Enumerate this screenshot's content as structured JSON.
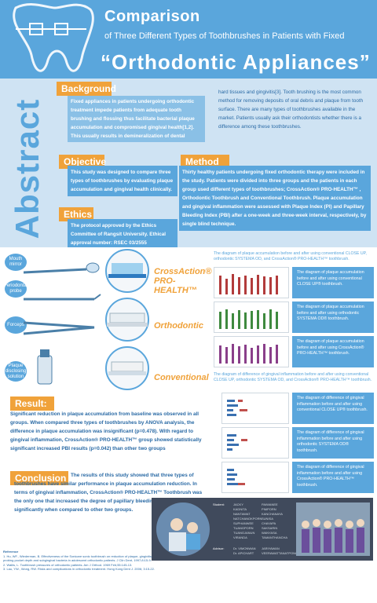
{
  "header": {
    "title_line1": "Comparison",
    "title_line2": "of Three Different Types of Toothbrushes in Patients with Fixed",
    "title_line3": "“Orthodontic Appliances”"
  },
  "abstract": {
    "word": "Abstract",
    "background": {
      "heading": "Background",
      "col1": "Fixed appliances in patients undergoing orthodontic treatment impede patients from adequate tooth brushing and flossing thus facilitate bacterial plaque accumulation and compromised gingival health[1,2]. This usually results in demineralization of dental",
      "col2": "hard tissues and gingivitis[3]. Tooth brushing is the most common method for removing deposits of oral debris and plaque from tooth surface. There are many types of toothbrushes available in the market. Patients usually ask their orthodontists whether there is a difference among these toothbrushes."
    },
    "objective": {
      "heading": "Objective",
      "text": "This study was designed to compare three types of toothbrushes by evaluating plaque accumulation and gingival health clinically."
    },
    "ethics": {
      "heading": "Ethics",
      "text": "The protocol approved by the Ethics Committee of Rangsit University. Ethical approval number: RSEC 03/2555"
    },
    "method": {
      "heading": "Method",
      "text": "Thirty healthy patients undergoing fixed orthodontic therapy were included in the study. Patients were divided into three groups and the patients in each group used different types of toothbrushes; CrossAction® PRO-HEALTH™ , Orthodontic Toothbrush and Conventional Toothbrush. Plaque accumulation and gingival inflammation were assessed with Plaque Index (PI) and Papillary Bleeding Index (PBI) after a one-week and three-week interval, respectively, by single blind technique."
    }
  },
  "tools": {
    "labels": [
      "Mouth mirror",
      "Periodontal probe",
      "Forceps",
      "Plaque disclosing solution"
    ],
    "brushes": [
      "CrossAction® PRO-HEALTH™",
      "Orthodontic",
      "Conventional"
    ]
  },
  "charts_right": {
    "caption_top": "The diagram of plaque accumulation before and after using conventional CLOSE UP, orthodontic SYSTEMA OD, and CrossAction® PRO-HEALTH™ toothbrush.",
    "plaque_info": [
      "The diagram of plaque accumulation before and after using conventional CLOSE UP® toothbrush.",
      "The diagram of plaque accumulation before and after using orthodontic SYSTEMA OD® toothbrush.",
      "The diagram of plaque accumulation before and after using CrossAction® PRO-HEALTH™ toothbrush."
    ],
    "caption_mid": "The diagram of difference of gingival inflammation before and after using conventional CLOSE UP, orthodontic SYSTEMA OD, and CrossAction® PRO-HEALTH™ toothbrush.",
    "gingival_info": [
      "The diagram of difference of gingival inflammation before and after using conventional CLOSE UP® toothbrush.",
      "The diagram of difference of gingival inflammation before and after using orthodontic SYSTEMA OD® toothbrush.",
      "The diagram of difference of gingival inflammation before and after using CrossAction® PRO-HEALTH™ toothbrush."
    ]
  },
  "result": {
    "heading": "Result:",
    "text": "Significant reduction in plaque accumulation from baseline was observed in all groups. When compared three types of toothbrushes by ANOVA analysis, the difference in plaque accumulation was insignificant (p=0.478). With regard to gingival inflammation, CrossAction® PRO-HEALTH™ group showed statistically significant increased PBI results (p=0.042) than other two groups"
  },
  "conclusion": {
    "heading": "Conclusion",
    "text": "The results of this study showed that three types of toothbrushes have similar performance in plaque accumulation reduction. In terms of gingival inflammation, CrossAction® PRO-HEALTH™ Toothbrush was the only one that increased the degree of papillary bleeding index statistical significantly when compared to other two groups."
  },
  "team": {
    "student_label": "Student:",
    "students": [
      "JACKY",
      "KADNITA",
      "NANTAWAT",
      "NATCHANOKPORN",
      "SUPHANWEE",
      "TUANGPORN",
      "TUANGJANUN",
      "VIRANDA",
      "PAIWANEE",
      "PIMPORN",
      "KANCHANAYA",
      "SUNISA",
      "CHAYAPA",
      "SAKSARIN",
      "WANYASA",
      "TAMANTHANCHA"
    ],
    "advisor_label": "Advisor:",
    "advisors": [
      "Dr. VIMONWAN",
      "Dr. APICHART",
      "JARIYAWAN",
      "VEERAWATTANATPONG"
    ]
  },
  "references": {
    "heading": "Reference",
    "items": [
      "1. Hu, WF., Wiederman, B. Effectiveness of the Sonicare sonic toothbrush on reduction of plaque, gingivitis, probing pocket depth and subgingival bacteria in adolescent orthodontic patients. J Clin Dent, 1997;8:15-9.",
      "2. Wallis, L. Toothbrush pressures of orthodontic patients. Am J Orthod. 1969 Feb;55:145-13.",
      "3. Lau, YW., Wong, RW. Risks and complications in orthodontic treatment. Hong Kong Dent J. 2006; 3:15-22."
    ]
  },
  "colors": {
    "brand_blue": "#5aa6dc",
    "light_blue": "#cfe3f3",
    "accent_orange": "#f0a23a",
    "dark_panel": "#404a5c"
  }
}
